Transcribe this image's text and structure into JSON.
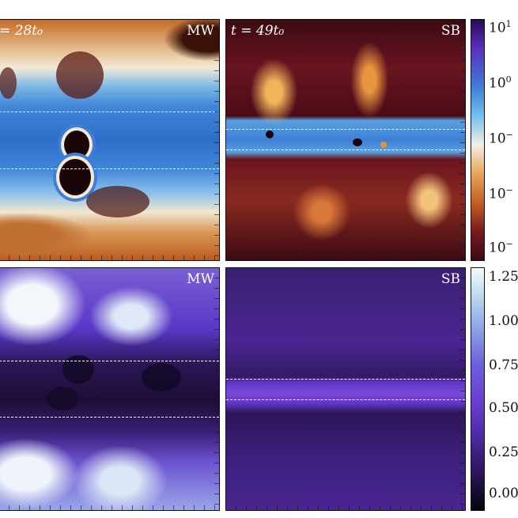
{
  "panels": {
    "top_left": {
      "time": "= 28t₀",
      "tag": "MW"
    },
    "top_right": {
      "time": "t = 49t₀",
      "tag": "SB"
    },
    "bottom_left": {
      "tag": "MW"
    },
    "bottom_right": {
      "tag": "SB"
    }
  },
  "colorbar_top": {
    "labels": [
      {
        "base": "10",
        "exp": "1"
      },
      {
        "base": "10",
        "exp": "0"
      },
      {
        "base": "10",
        "exp": "−"
      },
      {
        "base": "10",
        "exp": "−"
      },
      {
        "base": "10",
        "exp": "−"
      }
    ]
  },
  "colorbar_bottom": {
    "labels": [
      "1.25",
      "1.00",
      "0.75",
      "0.50",
      "0.25",
      "0.00"
    ]
  }
}
